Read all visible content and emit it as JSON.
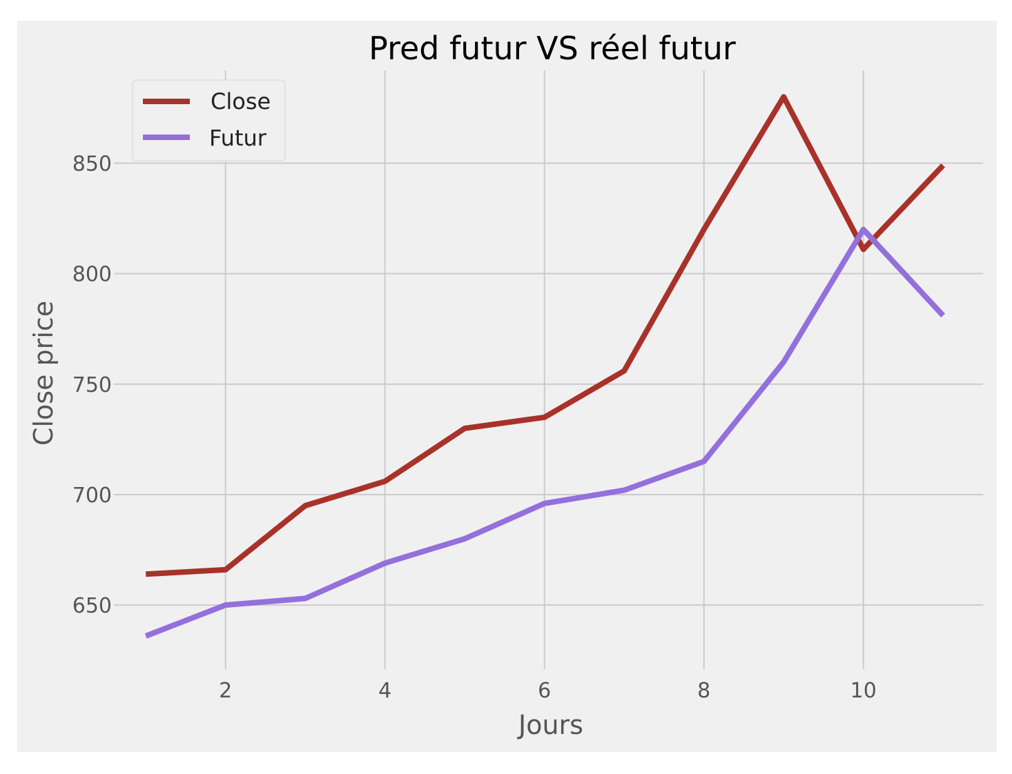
{
  "chart_data": {
    "type": "line",
    "title": "Pred futur VS réel futur",
    "xlabel": "Jours",
    "ylabel": "Close price",
    "x": [
      1,
      2,
      3,
      4,
      5,
      6,
      7,
      8,
      9,
      10,
      11
    ],
    "xlim": [
      0.6,
      11.5
    ],
    "ylim": [
      621,
      892
    ],
    "xticks": [
      2,
      4,
      6,
      8,
      10
    ],
    "yticks": [
      650,
      700,
      750,
      800,
      850
    ],
    "grid": true,
    "legend_position": "top-left",
    "series": [
      {
        "name": "Close",
        "color": "#a8322a",
        "values": [
          664,
          666,
          695,
          706,
          730,
          735,
          756,
          820,
          880,
          811,
          849
        ]
      },
      {
        "name": "Futur",
        "color": "#9370db",
        "values": [
          636,
          650,
          653,
          669,
          680,
          696,
          702,
          715,
          760,
          820,
          781
        ]
      }
    ]
  }
}
